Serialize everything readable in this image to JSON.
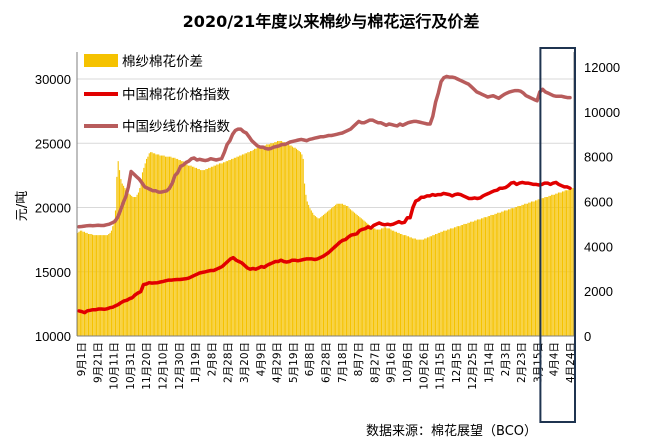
{
  "chart_data": {
    "type": "bar+line",
    "title": "2020/21年度以来棉纱与棉花运行及价差",
    "ylabel": "元/吨",
    "source": "数据来源：棉花展望（BCO）",
    "y_left": {
      "min": 10000,
      "max": 30000,
      "ticks": [
        "10000",
        "15000",
        "20000",
        "25000",
        "30000"
      ]
    },
    "y_right": {
      "min": 0,
      "max": 12000,
      "ticks": [
        "0",
        "2000",
        "4000",
        "6000",
        "8000",
        "10000",
        "12000"
      ]
    },
    "x_labels": [
      "9月1日",
      "9月21日",
      "10月11日",
      "10月31日",
      "11月20日",
      "12月10日",
      "12月30日",
      "1月19日",
      "2月8日",
      "2月28日",
      "3月20日",
      "4月9日",
      "4月29日",
      "5月19日",
      "6月8日",
      "6月28日",
      "7月18日",
      "8月7日",
      "8月27日",
      "9月16日",
      "10月6日",
      "10月26日",
      "11月15日",
      "12月5日",
      "12月25日",
      "1月14日",
      "2月3日",
      "2月23日",
      "3月15日",
      "4月4日",
      "4月24日"
    ],
    "legend": {
      "position": "top-left",
      "entries": [
        "棉纱棉花价差",
        "中国棉花价格指数",
        "中国纱线价格指数"
      ]
    },
    "colors": {
      "spread": "#F5C200",
      "cotton": "#E10000",
      "yarn": "#B85C5C",
      "highlight_box": "#1F3450"
    },
    "highlight": {
      "from_label": "3月15日",
      "to_label": "4月24日"
    },
    "series": [
      {
        "name": "中国棉花价格指数",
        "axis": "left",
        "values": [
          11950,
          11900,
          11820,
          11960,
          12000,
          12050,
          12050,
          12100,
          12100,
          12080,
          12120,
          12200,
          12240,
          12350,
          12450,
          12600,
          12720,
          12780,
          12900,
          12980,
          13200,
          13350,
          13450,
          14000,
          14050,
          14150,
          14120,
          14130,
          14150,
          14200,
          14250,
          14300,
          14350,
          14350,
          14380,
          14400,
          14400,
          14430,
          14450,
          14500,
          14600,
          14700,
          14800,
          14900,
          14950,
          15000,
          15050,
          15100,
          15100,
          15200,
          15300,
          15400,
          15600,
          15800,
          16000,
          16100,
          15900,
          15800,
          15700,
          15500,
          15300,
          15200,
          15250,
          15200,
          15300,
          15400,
          15350,
          15500,
          15600,
          15700,
          15800,
          15800,
          15900,
          15800,
          15750,
          15800,
          15900,
          15900,
          15850,
          15900,
          15950,
          16000,
          16000,
          16000,
          15950,
          16000,
          16100,
          16200,
          16350,
          16500,
          16700,
          16900,
          17100,
          17300,
          17450,
          17500,
          17700,
          17850,
          17900,
          17950,
          18200,
          18300,
          18350,
          18500,
          18400,
          18600,
          18700,
          18800,
          18700,
          18650,
          18700,
          18650,
          18700,
          18800,
          18900,
          18800,
          18850,
          19200,
          19200,
          20000,
          20500,
          20600,
          20800,
          20800,
          20900,
          20900,
          21000,
          20950,
          21000,
          21000,
          21100,
          21050,
          21000,
          20900,
          21000,
          21050,
          21000,
          20900,
          20800,
          20700,
          20700,
          20750,
          20700,
          20750,
          20900,
          21000,
          21100,
          21200,
          21300,
          21350,
          21500,
          21500,
          21550,
          21700,
          21900,
          21950,
          21800,
          21900,
          21950,
          21900,
          21900,
          21850,
          21800,
          21800,
          21750,
          21800,
          21900,
          21900,
          21800,
          21900,
          21950,
          21800,
          21700,
          21600,
          21600,
          21500
        ]
      },
      {
        "name": "中国纱线价格指数",
        "axis": "left",
        "values": [
          18500,
          18520,
          18550,
          18580,
          18600,
          18580,
          18600,
          18620,
          18600,
          18600,
          18650,
          18700,
          18800,
          18900,
          19200,
          19700,
          20300,
          20800,
          21600,
          22800,
          22600,
          22400,
          22200,
          21900,
          21600,
          21500,
          21400,
          21300,
          21300,
          21200,
          21200,
          21250,
          21300,
          21500,
          21900,
          22500,
          22700,
          23200,
          23300,
          23500,
          23600,
          23800,
          23850,
          23700,
          23750,
          23700,
          23650,
          23700,
          23800,
          23750,
          23700,
          23750,
          23800,
          24300,
          24900,
          25200,
          25700,
          26000,
          26100,
          26100,
          25900,
          25800,
          25500,
          25200,
          25000,
          24800,
          24700,
          24700,
          24600,
          24550,
          24600,
          24700,
          24750,
          24800,
          24900,
          24900,
          25000,
          25100,
          25150,
          25200,
          25250,
          25300,
          25250,
          25200,
          25300,
          25350,
          25400,
          25450,
          25500,
          25500,
          25550,
          25600,
          25600,
          25650,
          25700,
          25750,
          25800,
          25900,
          26000,
          26100,
          26300,
          26500,
          26700,
          26600,
          26600,
          26700,
          26800,
          26800,
          26700,
          26600,
          26600,
          26500,
          26400,
          26500,
          26450,
          26400,
          26350,
          26500,
          26400,
          26500,
          26600,
          26650,
          26700,
          26700,
          26650,
          26600,
          26550,
          26500,
          26500,
          27100,
          28200,
          28900,
          29800,
          30100,
          30200,
          30150,
          30150,
          30100,
          30000,
          29900,
          29800,
          29700,
          29600,
          29400,
          29200,
          29000,
          28900,
          28800,
          28700,
          28600,
          28650,
          28700,
          28600,
          28500,
          28650,
          28800,
          28900,
          29000,
          29050,
          29100,
          29100,
          29050,
          28900,
          28700,
          28600,
          28500,
          28400,
          28300,
          29000,
          29200,
          29000,
          28900,
          28800,
          28700,
          28650,
          28650,
          28650,
          28600,
          28550,
          28550
        ]
      },
      {
        "name": "棉纱棉花价差",
        "axis": "right",
        "values": [
          4600,
          4650,
          4700,
          4700,
          4650,
          4650,
          4600,
          4600,
          4550,
          4550,
          4550,
          4520,
          4500,
          4500,
          4500,
          4500,
          4500,
          4500,
          4500,
          4500,
          4500,
          4500,
          4500,
          4550,
          4600,
          4700,
          4900,
          5200,
          5600,
          7100,
          7800,
          7400,
          7000,
          6800,
          6700,
          6600,
          6500,
          6400,
          6350,
          6300,
          6250,
          6200,
          6200,
          6200,
          6300,
          6400,
          6600,
          7000,
          7300,
          7500,
          7700,
          7900,
          8000,
          8150,
          8200,
          8200,
          8150,
          8150,
          8100,
          8100,
          8100,
          8050,
          8050,
          8050,
          8050,
          8000,
          8000,
          8000,
          8000,
          8000,
          7950,
          7950,
          7950,
          7900,
          7900,
          7850,
          7850,
          7800,
          7800,
          7750,
          7700,
          7650,
          7600,
          7600,
          7600,
          7550,
          7550,
          7500,
          7500,
          7450,
          7450,
          7400,
          7400,
          7400,
          7400,
          7450,
          7450,
          7500,
          7500,
          7550,
          7550,
          7600,
          7600,
          7650,
          7650,
          7700,
          7700,
          7700,
          7750,
          7750,
          7800,
          7800,
          7850,
          7850,
          7900,
          7900,
          7950,
          7950,
          8000,
          8000,
          8050,
          8050,
          8100,
          8100,
          8150,
          8150,
          8200,
          8200,
          8250,
          8250,
          8300,
          8350,
          8350,
          8400,
          8400,
          8400,
          8450,
          8450,
          8500,
          8500,
          8550,
          8550,
          8550,
          8600,
          8600,
          8600,
          8650,
          8650,
          8700,
          8700,
          8700,
          8700,
          8650,
          8650,
          8600,
          8600,
          8550,
          8500,
          8500,
          8450,
          8400,
          8400,
          8350,
          8300,
          8250,
          8200,
          8100,
          7900,
          6800,
          6300,
          6000,
          5850,
          5700,
          5600,
          5500,
          5400,
          5350,
          5300,
          5250,
          5250,
          5300,
          5350,
          5400,
          5450,
          5500,
          5550,
          5600,
          5650,
          5700,
          5750,
          5800,
          5850,
          5900,
          5900,
          5900,
          5900,
          5900,
          5850,
          5850,
          5800,
          5800,
          5700,
          5650,
          5600,
          5550,
          5500,
          5450,
          5400,
          5350,
          5300,
          5250,
          5200,
          5150,
          5100,
          5050,
          5000,
          4950,
          4900,
          4850,
          4800,
          4800,
          4750,
          4750,
          4750,
          4750,
          4800,
          4800,
          4850,
          4850,
          4800,
          4800,
          4800,
          4750,
          4700,
          4700,
          4650,
          4650,
          4600,
          4600,
          4550,
          4550,
          4500,
          4500,
          4500,
          4450,
          4450,
          4400,
          4400,
          4350,
          4350,
          4350,
          4300,
          4300,
          4300,
          4300,
          4300,
          4300,
          4350,
          4350,
          4400,
          4400,
          4450,
          4450,
          4500,
          4500,
          4550,
          4550,
          4600,
          4600,
          4650,
          4650,
          4700,
          4700,
          4700,
          4750,
          4750,
          4800,
          4800,
          4800,
          4850,
          4850,
          4900,
          4900,
          4900,
          4950,
          4950,
          5000,
          5000,
          5000,
          5050,
          5050,
          5100,
          5100,
          5100,
          5150,
          5150,
          5200,
          5200,
          5200,
          5250,
          5250,
          5300,
          5300,
          5300,
          5350,
          5350,
          5400,
          5400,
          5400,
          5450,
          5450,
          5500,
          5500,
          5500,
          5550,
          5550,
          5600,
          5600,
          5600,
          5650,
          5650,
          5700,
          5700,
          5700,
          5750,
          5750,
          5800,
          5800,
          5800,
          5850,
          5850,
          5900,
          5900,
          5900,
          5950,
          5950,
          6000,
          6000,
          6000,
          6050,
          6050,
          6100,
          6100,
          6100,
          6150,
          6150,
          6200,
          6200,
          6200,
          6250,
          6250,
          6300,
          6300,
          6300,
          6350,
          6350,
          6400,
          6400,
          6400,
          6450,
          6450,
          6500,
          6500,
          6500,
          6550,
          6550,
          6600,
          6600
        ]
      }
    ]
  }
}
